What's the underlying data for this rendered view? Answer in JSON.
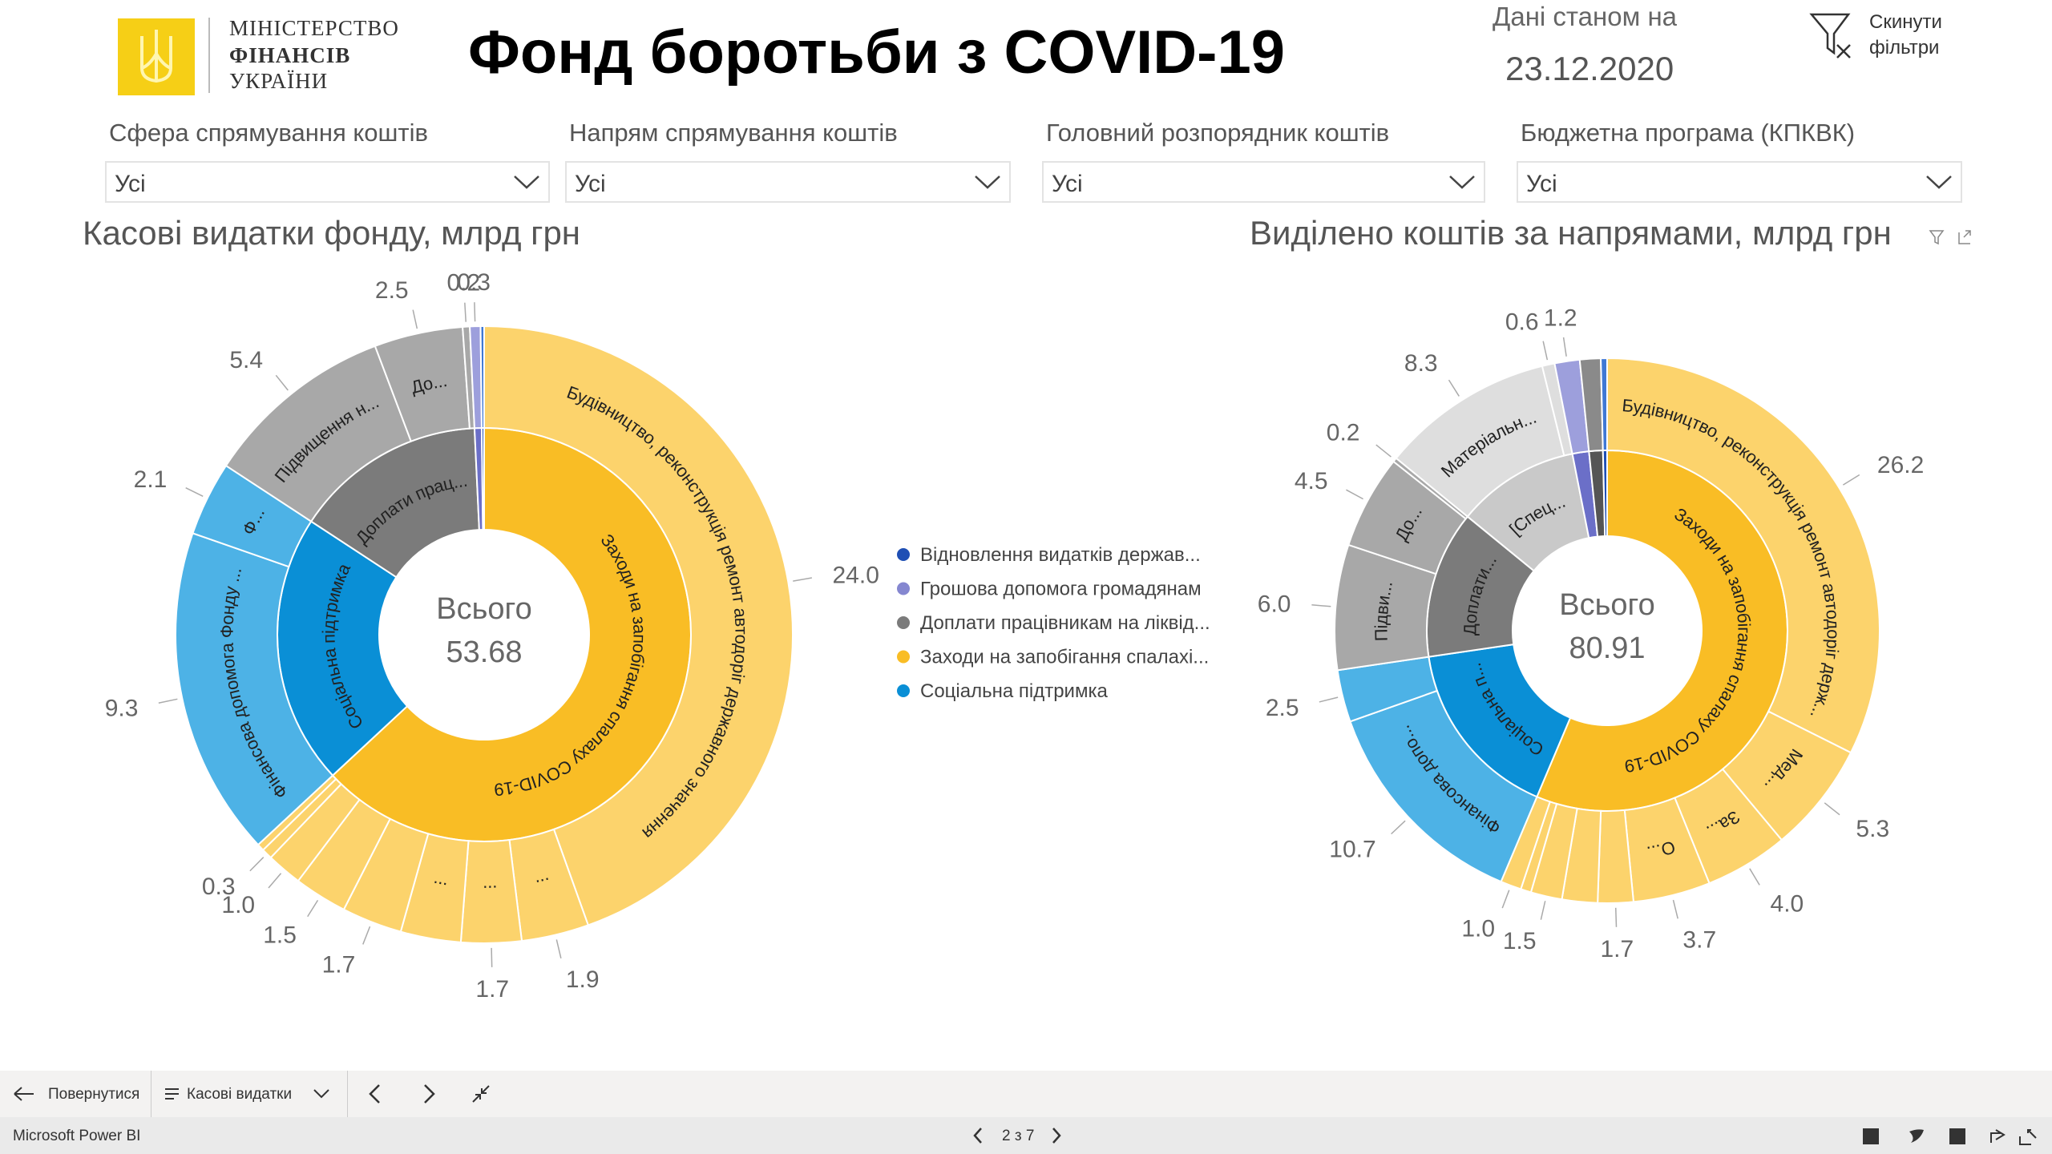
{
  "header": {
    "ministry": [
      "МІНІСТЕРСТВО",
      "ФІНАНСІВ",
      "УКРАЇНИ"
    ],
    "title": "Фонд боротьби з COVID-19",
    "date_caption": "Дані станом на",
    "date": "23.12.2020",
    "reset": [
      "Скинути",
      "фільтри"
    ]
  },
  "filters": [
    {
      "label": "Сфера спрямування коштів",
      "value": "Усі"
    },
    {
      "label": "Напрям спрямування коштів",
      "value": "Усі"
    },
    {
      "label": "Головний розпорядник коштів",
      "value": "Усі"
    },
    {
      "label": "Бюджетна програма (КПКВК)",
      "value": "Усі"
    }
  ],
  "chart_data": [
    {
      "type": "sunburst",
      "title": "Касові видатки фонду, млрд грн",
      "center_label": "Всього",
      "total": 53.68,
      "groups": [
        {
          "label": "Заходи на запобігання спалаху COVID-19",
          "color": "#f9bd25",
          "outer_color": "#fcd36c",
          "children": [
            {
              "label": "Будівництво, реконструкція ремонт автодоріг державного значення",
              "value": 24.0,
              "value_label": "24.0"
            },
            {
              "label": "...",
              "value": 1.9,
              "value_label": "1.9"
            },
            {
              "label": "...",
              "value": 1.7,
              "value_label": "1.7"
            },
            {
              "label": "...",
              "value": 1.7
            },
            {
              "value": 1.7,
              "value_label": "1.7"
            },
            {
              "value": 1.5,
              "value_label": "1.5"
            },
            {
              "value": 1.0,
              "value_label": "1.0"
            },
            {
              "value": 0.3,
              "value_label": "0.3"
            },
            {
              "value": 0.2
            }
          ]
        },
        {
          "label": "Соціальна підтримка",
          "color": "#0a8fd6",
          "outer_color": "#4db2e6",
          "children": [
            {
              "label": "Фінансова допомога Фонду ...",
              "value": 9.3,
              "value_label": "9.3"
            },
            {
              "label": "Ф...",
              "value": 2.1,
              "value_label": "2.1"
            }
          ]
        },
        {
          "label": "Доплати прац...",
          "color": "#7b7b7b",
          "outer_color": "#a8a8a8",
          "children": [
            {
              "label": "Підвищення н...",
              "value": 5.4,
              "value_label": "5.4"
            },
            {
              "label": "До...",
              "value": 2.5,
              "value_label": "2.5"
            },
            {
              "value": 0.2,
              "value_label": "0.2"
            }
          ]
        },
        {
          "color": "#6b6fc8",
          "outer_color": "#9d9fdc",
          "children": [
            {
              "value": 0.3,
              "value_label": "0.3"
            }
          ]
        },
        {
          "color": "#1f4fb4",
          "outer_color": "#3f78d4",
          "children": [
            {
              "value": 0.1
            }
          ]
        }
      ],
      "legend": [
        {
          "name": "Відновлення видатків держав...",
          "color": "#1f4fb4"
        },
        {
          "name": "Грошова допомога громадянам",
          "color": "#8587d0"
        },
        {
          "name": "Доплати працівникам на ліквід...",
          "color": "#7b7b7b"
        },
        {
          "name": "Заходи на запобігання спалахі...",
          "color": "#f9bd25"
        },
        {
          "name": "Соціальна підтримка",
          "color": "#0a8fd6"
        }
      ]
    },
    {
      "type": "sunburst",
      "title": "Виділено коштів за напрямами, млрд грн",
      "center_label": "Всього",
      "total": 80.91,
      "groups": [
        {
          "label": "Заходи на запобігання спалаху COVID-19",
          "color": "#f9bd25",
          "outer_color": "#fcd36c",
          "children": [
            {
              "label": "Будівництво, реконструкція ремонт автодоріг держ...",
              "value": 26.2,
              "value_label": "26.2"
            },
            {
              "label": "Мед...",
              "value": 5.3,
              "value_label": "5.3"
            },
            {
              "label": "За...",
              "value": 4.0,
              "value_label": "4.0"
            },
            {
              "label": "О...",
              "value": 3.7,
              "value_label": "3.7"
            },
            {
              "value": 1.7,
              "value_label": "1.7"
            },
            {
              "value": 1.7
            },
            {
              "value": 1.5,
              "value_label": "1.5"
            },
            {
              "value": 0.5
            },
            {
              "value": 1.0,
              "value_label": "1.0"
            }
          ]
        },
        {
          "label": "Соціальна п...",
          "color": "#0a8fd6",
          "outer_color": "#4db2e6",
          "children": [
            {
              "label": "Фінансова допо...",
              "value": 10.7,
              "value_label": "10.7"
            },
            {
              "value": 2.5,
              "value_label": "2.5"
            }
          ]
        },
        {
          "label": "Доплати...",
          "color": "#7b7b7b",
          "outer_color": "#a8a8a8",
          "children": [
            {
              "label": "Підви...",
              "value": 6.0,
              "value_label": "6.0"
            },
            {
              "label": "До...",
              "value": 4.5,
              "value_label": "4.5"
            },
            {
              "value": 0.2,
              "value_label": "0.2"
            }
          ]
        },
        {
          "label": "[Спец...",
          "color": "#c9c9c9",
          "outer_color": "#dedede",
          "children": [
            {
              "label": "Матеріальн...",
              "value": 8.3,
              "value_label": "8.3"
            },
            {
              "value": 0.6,
              "value_label": "0.6"
            }
          ]
        },
        {
          "color": "#6b6fc8",
          "outer_color": "#9d9fdc",
          "children": [
            {
              "value": 1.2,
              "value_label": "1.2"
            }
          ]
        },
        {
          "color": "#555555",
          "outer_color": "#8a8a8a",
          "children": [
            {
              "value": 1.0
            }
          ]
        },
        {
          "color": "#1f4fb4",
          "outer_color": "#3f78d4",
          "children": [
            {
              "value": 0.3
            }
          ]
        }
      ]
    }
  ],
  "navbar": {
    "back": "Повернутися",
    "page": "Касові видатки"
  },
  "footer": {
    "brand": "Microsoft Power BI",
    "pager": "2 з 7"
  }
}
